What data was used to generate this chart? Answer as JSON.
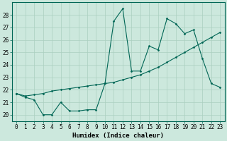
{
  "xlabel": "Humidex (Indice chaleur)",
  "x": [
    0,
    1,
    2,
    3,
    4,
    5,
    6,
    7,
    8,
    9,
    10,
    11,
    12,
    13,
    14,
    15,
    16,
    17,
    18,
    19,
    20,
    21,
    22,
    23
  ],
  "line1": [
    21.7,
    21.4,
    21.2,
    20.0,
    20.0,
    21.0,
    20.3,
    20.3,
    20.4,
    20.4,
    22.5,
    27.5,
    28.5,
    23.5,
    23.5,
    25.5,
    25.2,
    27.7,
    27.3,
    26.5,
    26.8,
    24.5,
    22.5,
    22.2
  ],
  "line2": [
    21.7,
    21.5,
    21.6,
    21.7,
    21.9,
    22.0,
    22.1,
    22.2,
    22.3,
    22.4,
    22.5,
    22.6,
    22.8,
    23.0,
    23.2,
    23.5,
    23.8,
    24.2,
    24.6,
    25.0,
    25.4,
    25.8,
    26.2,
    26.6
  ],
  "ylim": [
    19.5,
    29.0
  ],
  "yticks": [
    20,
    21,
    22,
    23,
    24,
    25,
    26,
    27,
    28
  ],
  "xticks": [
    0,
    1,
    2,
    3,
    4,
    5,
    6,
    7,
    8,
    9,
    10,
    11,
    12,
    13,
    14,
    15,
    16,
    17,
    18,
    19,
    20,
    21,
    22,
    23
  ],
  "bg_color": "#cce8dd",
  "grid_color": "#aacfbf",
  "line_color": "#006655",
  "marker": "D",
  "marker_size": 1.5,
  "line_width": 0.8,
  "tick_fontsize": 5.5,
  "xlabel_fontsize": 6.5
}
